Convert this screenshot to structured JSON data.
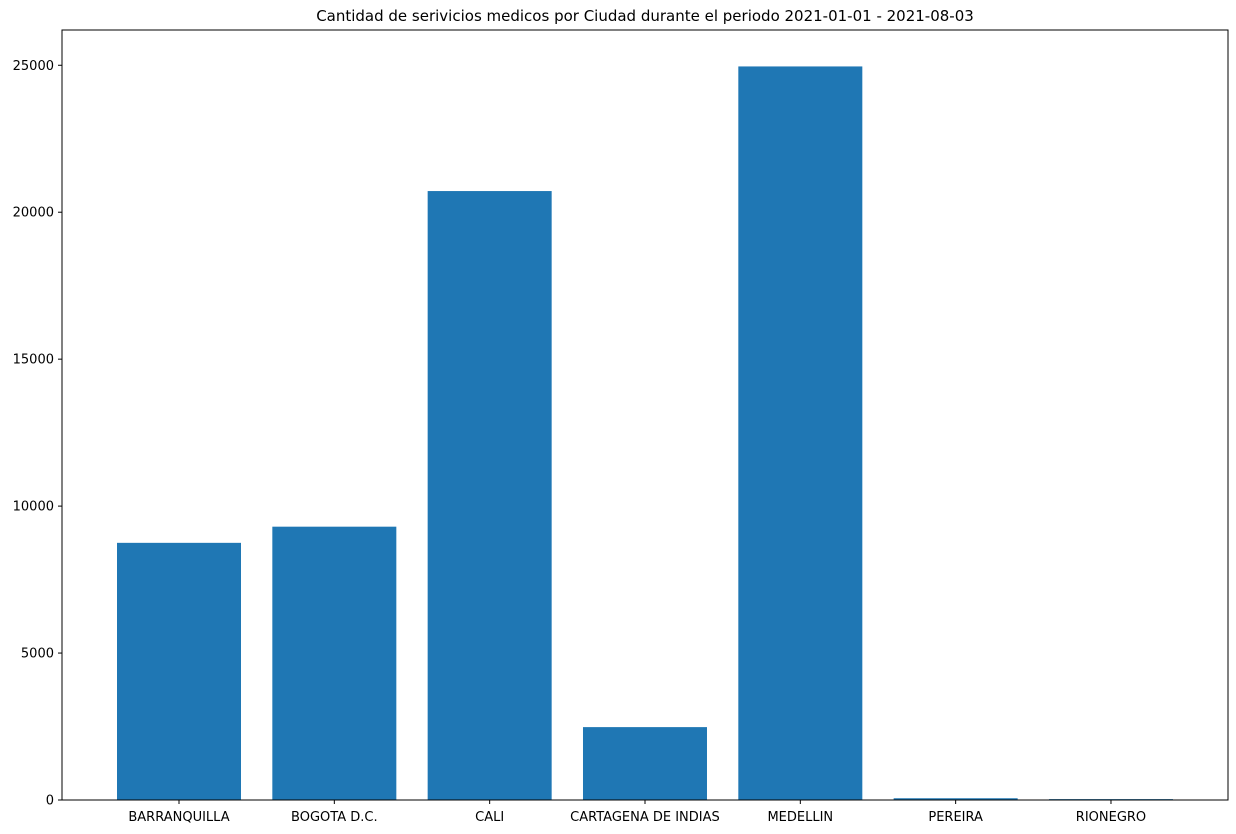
{
  "chart_data": {
    "type": "bar",
    "title": "Cantidad de serivicios medicos por Ciudad durante el periodo 2021-01-01 - 2021-08-03",
    "xlabel": "",
    "ylabel": "",
    "categories": [
      "BARRANQUILLA",
      "BOGOTA D.C.",
      "CALI",
      "CARTAGENA DE INDIAS",
      "MEDELLIN",
      "PEREIRA",
      "RIONEGRO"
    ],
    "values": [
      8750,
      9300,
      20720,
      2480,
      24960,
      60,
      30
    ],
    "ylim": [
      0,
      26200
    ],
    "yticks": [
      0,
      5000,
      10000,
      15000,
      20000,
      25000
    ],
    "ytick_labels": [
      "0",
      "5000",
      "10000",
      "15000",
      "20000",
      "25000"
    ],
    "grid": false,
    "bar_color": "#1f77b4"
  }
}
